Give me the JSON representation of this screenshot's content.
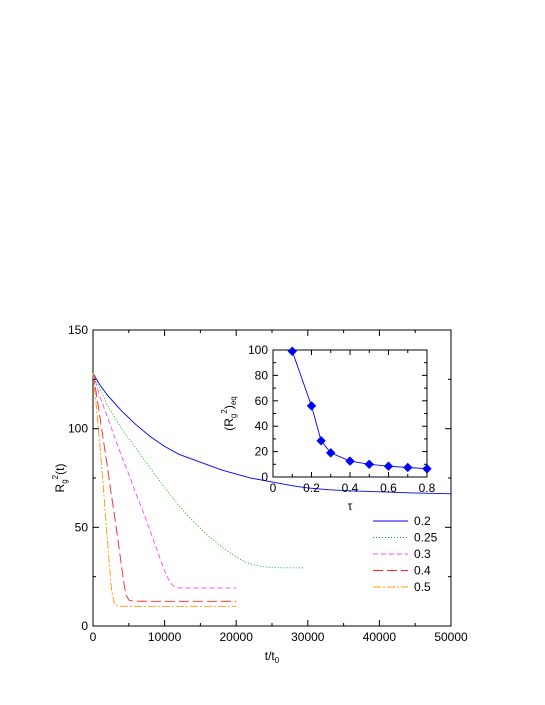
{
  "chart_data": [
    {
      "type": "line",
      "xlabel": "t/t",
      "xlabel_sub": "0",
      "ylabel_base": "R",
      "ylabel_sub": "g",
      "ylabel_sup": "2",
      "ylabel_tail": "(t)",
      "xlim": [
        0,
        50000
      ],
      "ylim": [
        0,
        150
      ],
      "xticks": [
        0,
        10000,
        20000,
        30000,
        40000,
        50000
      ],
      "xtick_labels": [
        "0",
        "10000",
        "20000",
        "30000",
        "40000",
        "50000"
      ],
      "yticks": [
        0,
        50,
        100,
        150
      ],
      "ytick_labels": [
        "0",
        "50",
        "100",
        "150"
      ],
      "grid": false,
      "legend_position": "bottom-right",
      "series": [
        {
          "name": "0.2",
          "color": "#0000ff",
          "dash": "",
          "x": [
            0,
            1000,
            2000,
            4000,
            6000,
            8000,
            10000,
            12000,
            15000,
            18000,
            20000,
            22000,
            25000,
            28000,
            30000,
            33000,
            36000,
            40000,
            44000,
            48000,
            50000
          ],
          "y": [
            128,
            122,
            117,
            109,
            102,
            96,
            91,
            87,
            83,
            79,
            77,
            75,
            73,
            71,
            70,
            69,
            68.5,
            68,
            67.5,
            67.2,
            67
          ]
        },
        {
          "name": "0.25",
          "color": "#00aa00",
          "dash": "1,2",
          "x": [
            0,
            1000,
            2000,
            4000,
            6000,
            8000,
            10000,
            12000,
            14000,
            16000,
            18000,
            20000,
            21500,
            23000,
            24000,
            25000,
            27000,
            29500
          ],
          "y": [
            128,
            120,
            112,
            100,
            90,
            80,
            70,
            61,
            53,
            46,
            40,
            35,
            32,
            30.5,
            30,
            29.6,
            29.5,
            29.5
          ]
        },
        {
          "name": "0.3",
          "color": "#ff44ff",
          "dash": "5,3",
          "x": [
            0,
            1000,
            2000,
            3000,
            4000,
            5000,
            6000,
            7000,
            8000,
            9000,
            10000,
            10500,
            11000,
            11500,
            12000,
            14000,
            16000,
            18000,
            20000
          ],
          "y": [
            128,
            116,
            106,
            96,
            86,
            77,
            67,
            58,
            48,
            38,
            28,
            24,
            21,
            19.8,
            19.3,
            19.2,
            19.2,
            19.2,
            19.2
          ]
        },
        {
          "name": "0.4",
          "color": "#ff2222",
          "dash": "10,4",
          "x": [
            0,
            500,
            1000,
            1500,
            2000,
            2500,
            3000,
            3500,
            4000,
            4300,
            4600,
            5000,
            5500,
            8000,
            12000,
            16000,
            20000
          ],
          "y": [
            128,
            117,
            105,
            93,
            81,
            68,
            56,
            43,
            30,
            22,
            16,
            13.2,
            12.6,
            12.5,
            12.5,
            12.5,
            12.5
          ]
        },
        {
          "name": "0.5",
          "color": "#ff9900",
          "dash": "8,2,2,2",
          "x": [
            0,
            500,
            1000,
            1500,
            2000,
            2300,
            2600,
            3000,
            3500,
            5000,
            10000,
            15000,
            20000
          ],
          "y": [
            128,
            110,
            90,
            68,
            44,
            30,
            18,
            11,
            10,
            10,
            10,
            10,
            10
          ]
        }
      ]
    },
    {
      "type": "line",
      "inset": true,
      "xlabel": "τ",
      "ylabel_base": "(R",
      "ylabel_sub": "g",
      "ylabel_sup": "2",
      "ylabel_tail": ")",
      "ylabel_tail_sub": "eq",
      "xlim": [
        0,
        0.8
      ],
      "ylim": [
        0,
        100
      ],
      "xticks": [
        0,
        0.2,
        0.4,
        0.6,
        0.8
      ],
      "xtick_labels": [
        "0",
        "0.2",
        "0.4",
        "0.6",
        "0.8"
      ],
      "yticks": [
        0,
        20,
        40,
        60,
        80,
        100
      ],
      "ytick_labels": [
        "0",
        "20",
        "40",
        "60",
        "80",
        "100"
      ],
      "grid": false,
      "marker": "diamond",
      "color": "#0000ff",
      "x": [
        0.1,
        0.2,
        0.25,
        0.3,
        0.4,
        0.5,
        0.6,
        0.7,
        0.8
      ],
      "y": [
        99,
        56,
        28.5,
        19,
        12.5,
        10,
        8.5,
        7.5,
        6.5
      ]
    }
  ]
}
